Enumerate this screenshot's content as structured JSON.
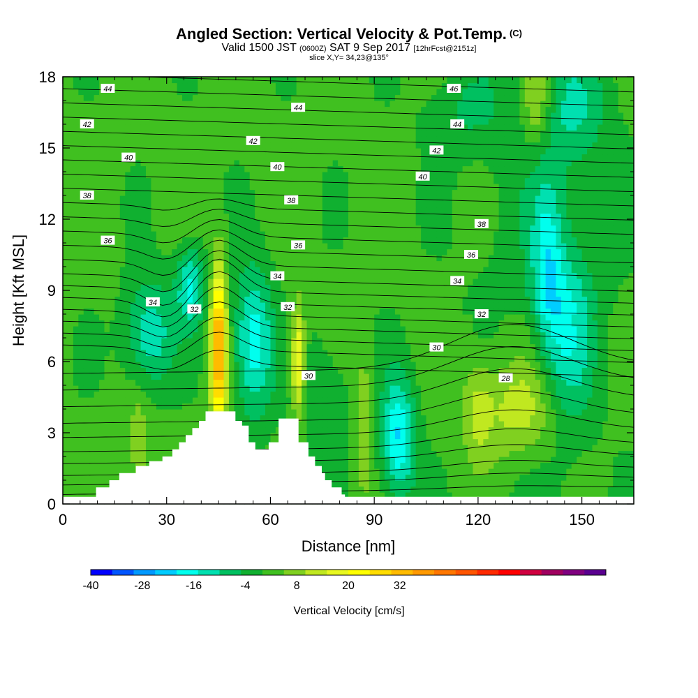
{
  "title": "Angled Section: Vertical Velocity & Pot.Temp.",
  "title_unit": "(C)",
  "subtitle": {
    "valid": "Valid 1500 JST",
    "utc": "(0600Z)",
    "date": "SAT 9 Sep 2017",
    "forecast": "[12hrFcst@2151z]"
  },
  "slice": "slice X,Y= 34,23@135°",
  "chart_data": {
    "type": "heatmap",
    "xlabel": "Distance [nm]",
    "ylabel": "Height [Kft MSL]",
    "xlim": [
      0,
      165
    ],
    "ylim": [
      0,
      18
    ],
    "x_ticks": [
      "0",
      "30",
      "60",
      "90",
      "120",
      "150"
    ],
    "y_ticks": [
      "0",
      "3",
      "6",
      "9",
      "12",
      "15",
      "18"
    ],
    "colorbar": {
      "label": "Vertical Velocity [cm/s]",
      "tick_labels": [
        "-40",
        "-28",
        "-16",
        "-4",
        "8",
        "20",
        "32"
      ],
      "colors": [
        "#0000ff",
        "#0055ff",
        "#0099ff",
        "#00ccff",
        "#00ffee",
        "#00e0b0",
        "#00c060",
        "#10b030",
        "#40c020",
        "#80d020",
        "#c0e820",
        "#e8f820",
        "#ffff00",
        "#ffdd00",
        "#ffbb00",
        "#ff9900",
        "#ff7700",
        "#ff5500",
        "#ff2a00",
        "#ff0000",
        "#d00040",
        "#a00060",
        "#800080",
        "#5a0090"
      ]
    },
    "contour_labels": [
      {
        "value": "44",
        "x": 13,
        "y": 17.5
      },
      {
        "value": "46",
        "x": 113,
        "y": 17.5
      },
      {
        "value": "44",
        "x": 68,
        "y": 16.7
      },
      {
        "value": "42",
        "x": 7,
        "y": 16.0
      },
      {
        "value": "44",
        "x": 114,
        "y": 16.0
      },
      {
        "value": "42",
        "x": 55,
        "y": 15.3
      },
      {
        "value": "42",
        "x": 108,
        "y": 14.9
      },
      {
        "value": "40",
        "x": 19,
        "y": 14.6
      },
      {
        "value": "40",
        "x": 62,
        "y": 14.2
      },
      {
        "value": "40",
        "x": 104,
        "y": 13.8
      },
      {
        "value": "38",
        "x": 7,
        "y": 13.0
      },
      {
        "value": "38",
        "x": 66,
        "y": 12.8
      },
      {
        "value": "38",
        "x": 121,
        "y": 11.8
      },
      {
        "value": "36",
        "x": 13,
        "y": 11.1
      },
      {
        "value": "36",
        "x": 68,
        "y": 10.9
      },
      {
        "value": "36",
        "x": 118,
        "y": 10.5
      },
      {
        "value": "34",
        "x": 62,
        "y": 9.6
      },
      {
        "value": "34",
        "x": 114,
        "y": 9.4
      },
      {
        "value": "34",
        "x": 26,
        "y": 8.5
      },
      {
        "value": "32",
        "x": 38,
        "y": 8.2
      },
      {
        "value": "32",
        "x": 65,
        "y": 8.3
      },
      {
        "value": "32",
        "x": 121,
        "y": 8.0
      },
      {
        "value": "30",
        "x": 108,
        "y": 6.6
      },
      {
        "value": "30",
        "x": 71,
        "y": 5.4
      },
      {
        "value": "28",
        "x": 128,
        "y": 5.3
      }
    ],
    "terrain_height": [
      0.3,
      0.3,
      0.3,
      0.3,
      0.3,
      0.3,
      0.3,
      0.3,
      0.3,
      0.3,
      0.7,
      0.7,
      0.7,
      0.7,
      1.0,
      1.0,
      1.0,
      1.3,
      1.3,
      1.3,
      1.3,
      1.3,
      1.6,
      1.6,
      1.6,
      1.6,
      1.8,
      1.8,
      1.8,
      1.8,
      2.0,
      2.0,
      2.0,
      2.3,
      2.3,
      2.6,
      2.6,
      2.9,
      2.9,
      3.2,
      3.2,
      3.5,
      3.5,
      3.9,
      3.9,
      3.9,
      3.9,
      3.9,
      3.9,
      3.9,
      3.9,
      3.9,
      3.5,
      3.5,
      3.3,
      3.3,
      2.6,
      2.6,
      2.3,
      2.3,
      2.3,
      2.3,
      2.6,
      2.6,
      2.6,
      3.6,
      3.6,
      3.6,
      3.6,
      3.6,
      3.6,
      2.6,
      2.6,
      2.6,
      2.0,
      2.0,
      1.6,
      1.6,
      1.3,
      1.0,
      1.0,
      0.7,
      0.7,
      0.7,
      0.4,
      0.3,
      0.3,
      0.3,
      0.3,
      0.3,
      0.3,
      0.3,
      0.3,
      0.3,
      0.3,
      0.3,
      0.3,
      0.3,
      0.3,
      0.3,
      0.3,
      0.3,
      0.3,
      0.3,
      0.3,
      0.3,
      0.3,
      0.3,
      0.3,
      0.3,
      0.3,
      0.3,
      0.3,
      0.3,
      0.3,
      0.3,
      0.3,
      0.3,
      0.3,
      0.3,
      0.3,
      0.3,
      0.3,
      0.3,
      0.3,
      0.3,
      0.3,
      0.3,
      0.3,
      0.3,
      0.3,
      0.3,
      0.3,
      0.3,
      0.3,
      0.3,
      0.3,
      0.3,
      0.3,
      0.3,
      0.3,
      0.3,
      0.3,
      0.3,
      0.3,
      0.3,
      0.3,
      0.3,
      0.3,
      0.3,
      0.3,
      0.3,
      0.3,
      0.3,
      0.3,
      0.3,
      0.3,
      0.3,
      0.3,
      0.3,
      0.3,
      0.3,
      0.3,
      0.3,
      0.3,
      0.3,
      0.3,
      0.3,
      0.3,
      0.3,
      0.3,
      0.3
    ],
    "blobs": [
      {
        "x": 45,
        "y": 6.5,
        "sx": 1.6,
        "sy": 2.4,
        "w": 36
      },
      {
        "x": 68,
        "y": 6.0,
        "sx": 1.4,
        "sy": 1.6,
        "w": 22
      },
      {
        "x": 25,
        "y": 7.2,
        "sx": 5,
        "sy": 1.6,
        "w": -16
      },
      {
        "x": 37,
        "y": 9.2,
        "sx": 3,
        "sy": 1.2,
        "w": -17
      },
      {
        "x": 55,
        "y": 6.8,
        "sx": 4,
        "sy": 2.2,
        "w": -20
      },
      {
        "x": 97,
        "y": 2.8,
        "sx": 3.5,
        "sy": 1.8,
        "w": -22
      },
      {
        "x": 146,
        "y": 7.0,
        "sx": 5,
        "sy": 2.6,
        "w": -14
      },
      {
        "x": 140,
        "y": 10.0,
        "sx": 3,
        "sy": 2.5,
        "w": -14
      },
      {
        "x": 115,
        "y": 16.5,
        "sx": 8,
        "sy": 1.2,
        "w": -6
      },
      {
        "x": 148,
        "y": 16.5,
        "sx": 6,
        "sy": 1.5,
        "w": -8
      },
      {
        "x": 132,
        "y": 4.0,
        "sx": 8,
        "sy": 1.5,
        "w": 12
      },
      {
        "x": 120,
        "y": 4.0,
        "sx": 3,
        "sy": 1.5,
        "w": 9
      },
      {
        "x": 87,
        "y": 3.5,
        "sx": 1.5,
        "sy": 2,
        "w": 10
      },
      {
        "x": 137,
        "y": 17.0,
        "sx": 3,
        "sy": 1.5,
        "w": 12
      },
      {
        "x": 22,
        "y": 2.5,
        "sx": 2,
        "sy": 1.5,
        "w": 8
      },
      {
        "x": 75,
        "y": 4.5,
        "sx": 6,
        "sy": 2,
        "w": -6
      }
    ]
  }
}
